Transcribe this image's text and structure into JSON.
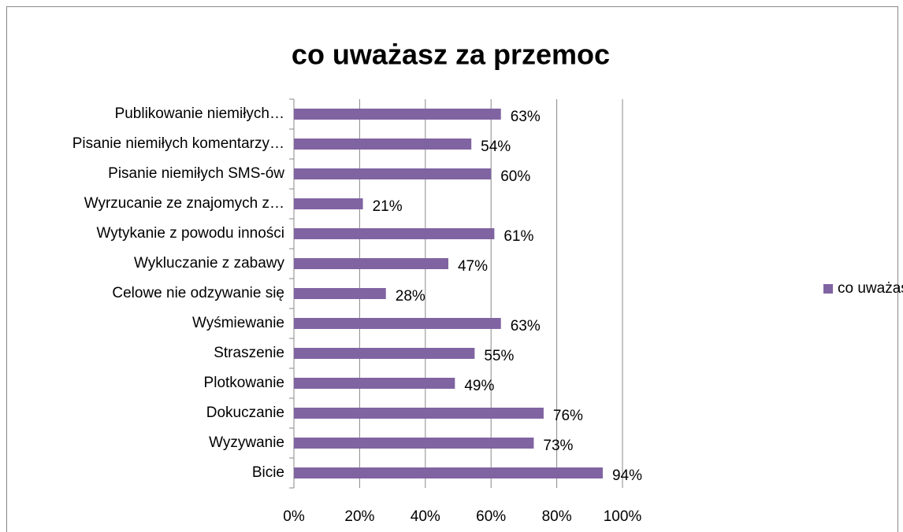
{
  "chart_data": {
    "type": "bar",
    "orientation": "horizontal",
    "title": "co uważasz za przemoc",
    "categories": [
      "Publikowanie niemiłych…",
      "Pisanie niemiłych komentarzy…",
      "Pisanie niemiłych SMS-ów",
      "Wyrzucanie ze znajomych z…",
      "Wytykanie z powodu inności",
      "Wykluczanie z zabawy",
      "Celowe nie odzywanie się",
      "Wyśmiewanie",
      "Straszenie",
      "Plotkowanie",
      "Dokuczanie",
      "Wyzywanie",
      "Bicie"
    ],
    "series": [
      {
        "name": "co uważasz za przemoc",
        "color": "#8064a2",
        "values": [
          63,
          54,
          60,
          21,
          61,
          47,
          28,
          63,
          55,
          49,
          76,
          73,
          94
        ],
        "value_labels": [
          "63%",
          "54%",
          "60%",
          "21%",
          "61%",
          "47%",
          "28%",
          "63%",
          "55%",
          "49%",
          "76%",
          "73%",
          "94%"
        ]
      }
    ],
    "xlim": [
      0,
      100
    ],
    "xticks": [
      {
        "value": 0,
        "label": "0%"
      },
      {
        "value": 20,
        "label": "20%"
      },
      {
        "value": 40,
        "label": "40%"
      },
      {
        "value": 60,
        "label": "60%"
      },
      {
        "value": 80,
        "label": "80%"
      },
      {
        "value": 100,
        "label": "100%"
      }
    ],
    "grid": true,
    "legend": "right"
  }
}
